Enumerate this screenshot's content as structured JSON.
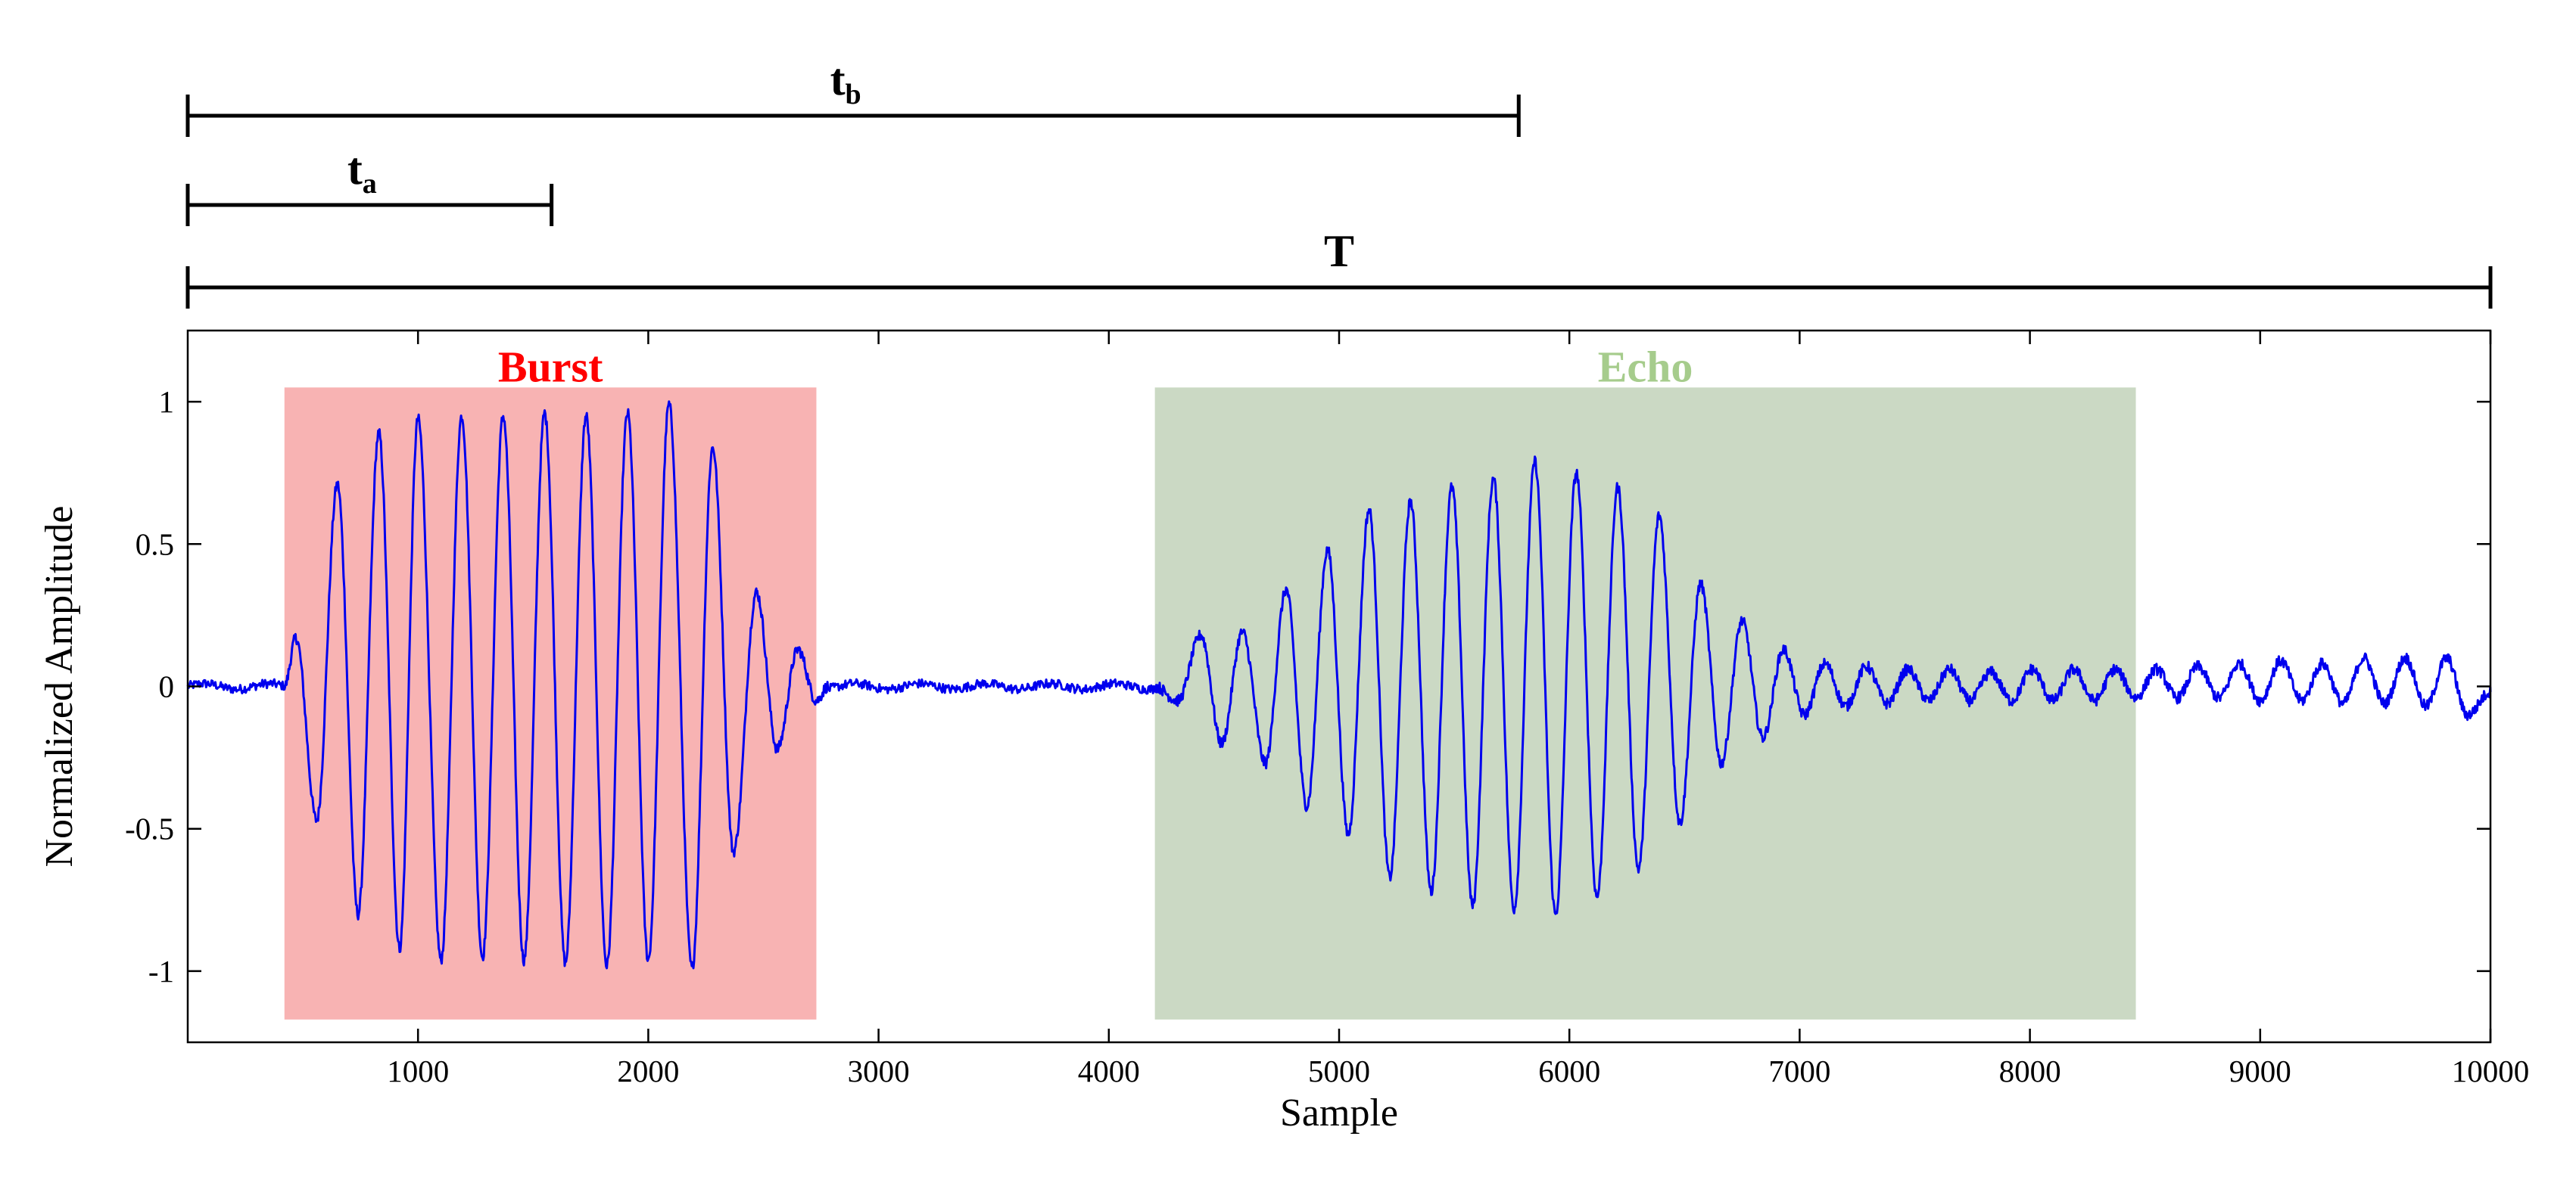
{
  "chart_data": {
    "type": "line",
    "xlabel": "Sample",
    "ylabel": "Normalized Amplitude",
    "xlim": [
      0,
      10000
    ],
    "ylim": [
      -1.25,
      1.25
    ],
    "xticks": [
      1000,
      2000,
      3000,
      4000,
      5000,
      6000,
      7000,
      8000,
      9000,
      10000
    ],
    "xtick_labels": [
      "1000",
      "2000",
      "3000",
      "4000",
      "5000",
      "6000",
      "7000",
      "8000",
      "9000",
      "10000"
    ],
    "yticks": [
      1,
      0.5,
      0,
      -0.5,
      -1
    ],
    "ytick_labels": [
      "1",
      "0.5",
      "0",
      "-0.5",
      "-1"
    ],
    "line_color": "#0000ee",
    "regions": [
      {
        "name": "Burst",
        "x_start": 420,
        "x_end": 2730,
        "y_min": -1.17,
        "y_max": 1.05,
        "fill": "#f8b3b3",
        "label_color": "#ff0000"
      },
      {
        "name": "Echo",
        "x_start": 4200,
        "x_end": 8460,
        "y_min": -1.17,
        "y_max": 1.05,
        "fill": "#cbd9c4",
        "label_color": "#a6cc8c"
      }
    ],
    "intervals": [
      {
        "name": "t",
        "subscript": "b",
        "x_start": 0,
        "x_end": 5780
      },
      {
        "name": "t",
        "subscript": "a",
        "x_start": 0,
        "x_end": 1580
      },
      {
        "name": "T",
        "subscript": "",
        "x_start": 0,
        "x_end": 10000
      }
    ],
    "burst_peaks": [
      {
        "x": 470,
        "y": 0.17
      },
      {
        "x": 560,
        "y": -0.47
      },
      {
        "x": 650,
        "y": 0.71
      },
      {
        "x": 740,
        "y": -0.8
      },
      {
        "x": 830,
        "y": 0.89
      },
      {
        "x": 920,
        "y": -0.92
      },
      {
        "x": 1000,
        "y": 0.94
      },
      {
        "x": 1100,
        "y": -0.96
      },
      {
        "x": 1190,
        "y": 0.95
      },
      {
        "x": 1280,
        "y": -0.95
      },
      {
        "x": 1370,
        "y": 0.95
      },
      {
        "x": 1460,
        "y": -0.96
      },
      {
        "x": 1550,
        "y": 0.96
      },
      {
        "x": 1640,
        "y": -0.97
      },
      {
        "x": 1730,
        "y": 0.95
      },
      {
        "x": 1820,
        "y": -0.98
      },
      {
        "x": 1910,
        "y": 0.96
      },
      {
        "x": 2000,
        "y": -0.96
      },
      {
        "x": 2090,
        "y": 0.99
      },
      {
        "x": 2190,
        "y": -0.99
      },
      {
        "x": 2280,
        "y": 0.84
      },
      {
        "x": 2370,
        "y": -0.58
      },
      {
        "x": 2470,
        "y": 0.33
      },
      {
        "x": 2560,
        "y": -0.22
      },
      {
        "x": 2650,
        "y": 0.13
      },
      {
        "x": 2730,
        "y": -0.05
      }
    ],
    "echo_peaks": [
      {
        "x": 4300,
        "y": -0.05
      },
      {
        "x": 4400,
        "y": 0.18
      },
      {
        "x": 4490,
        "y": -0.2
      },
      {
        "x": 4580,
        "y": 0.19
      },
      {
        "x": 4680,
        "y": -0.27
      },
      {
        "x": 4770,
        "y": 0.34
      },
      {
        "x": 4860,
        "y": -0.42
      },
      {
        "x": 4950,
        "y": 0.48
      },
      {
        "x": 5040,
        "y": -0.52
      },
      {
        "x": 5130,
        "y": 0.62
      },
      {
        "x": 5220,
        "y": -0.67
      },
      {
        "x": 5310,
        "y": 0.65
      },
      {
        "x": 5400,
        "y": -0.72
      },
      {
        "x": 5490,
        "y": 0.7
      },
      {
        "x": 5580,
        "y": -0.77
      },
      {
        "x": 5670,
        "y": 0.73
      },
      {
        "x": 5760,
        "y": -0.78
      },
      {
        "x": 5850,
        "y": 0.79
      },
      {
        "x": 5940,
        "y": -0.8
      },
      {
        "x": 6030,
        "y": 0.75
      },
      {
        "x": 6120,
        "y": -0.74
      },
      {
        "x": 6210,
        "y": 0.7
      },
      {
        "x": 6300,
        "y": -0.64
      },
      {
        "x": 6390,
        "y": 0.6
      },
      {
        "x": 6480,
        "y": -0.48
      },
      {
        "x": 6570,
        "y": 0.36
      },
      {
        "x": 6660,
        "y": -0.27
      },
      {
        "x": 6750,
        "y": 0.23
      },
      {
        "x": 6840,
        "y": -0.18
      },
      {
        "x": 6930,
        "y": 0.13
      },
      {
        "x": 7020,
        "y": -0.1
      },
      {
        "x": 7110,
        "y": 0.08
      },
      {
        "x": 7200,
        "y": -0.07
      },
      {
        "x": 7290,
        "y": 0.07
      },
      {
        "x": 7380,
        "y": -0.06
      },
      {
        "x": 7470,
        "y": 0.06
      },
      {
        "x": 7560,
        "y": -0.05
      },
      {
        "x": 7650,
        "y": 0.06
      },
      {
        "x": 7740,
        "y": -0.05
      },
      {
        "x": 7830,
        "y": 0.05
      },
      {
        "x": 7920,
        "y": -0.05
      },
      {
        "x": 8010,
        "y": 0.06
      },
      {
        "x": 8100,
        "y": -0.05
      },
      {
        "x": 8190,
        "y": 0.06
      },
      {
        "x": 8280,
        "y": -0.05
      },
      {
        "x": 8370,
        "y": 0.06
      },
      {
        "x": 8460,
        "y": -0.04
      },
      {
        "x": 8550,
        "y": 0.06
      },
      {
        "x": 8640,
        "y": -0.04
      },
      {
        "x": 8730,
        "y": 0.07
      },
      {
        "x": 8820,
        "y": -0.04
      },
      {
        "x": 8910,
        "y": 0.08
      },
      {
        "x": 9000,
        "y": -0.05
      },
      {
        "x": 9090,
        "y": 0.09
      },
      {
        "x": 9180,
        "y": -0.05
      },
      {
        "x": 9270,
        "y": 0.08
      },
      {
        "x": 9360,
        "y": -0.06
      },
      {
        "x": 9450,
        "y": 0.1
      },
      {
        "x": 9540,
        "y": -0.06
      },
      {
        "x": 9630,
        "y": 0.1
      },
      {
        "x": 9720,
        "y": -0.07
      },
      {
        "x": 9810,
        "y": 0.1
      },
      {
        "x": 9900,
        "y": -0.1
      },
      {
        "x": 10000,
        "y": -0.02
      }
    ],
    "baseline_noise": 0.02
  }
}
